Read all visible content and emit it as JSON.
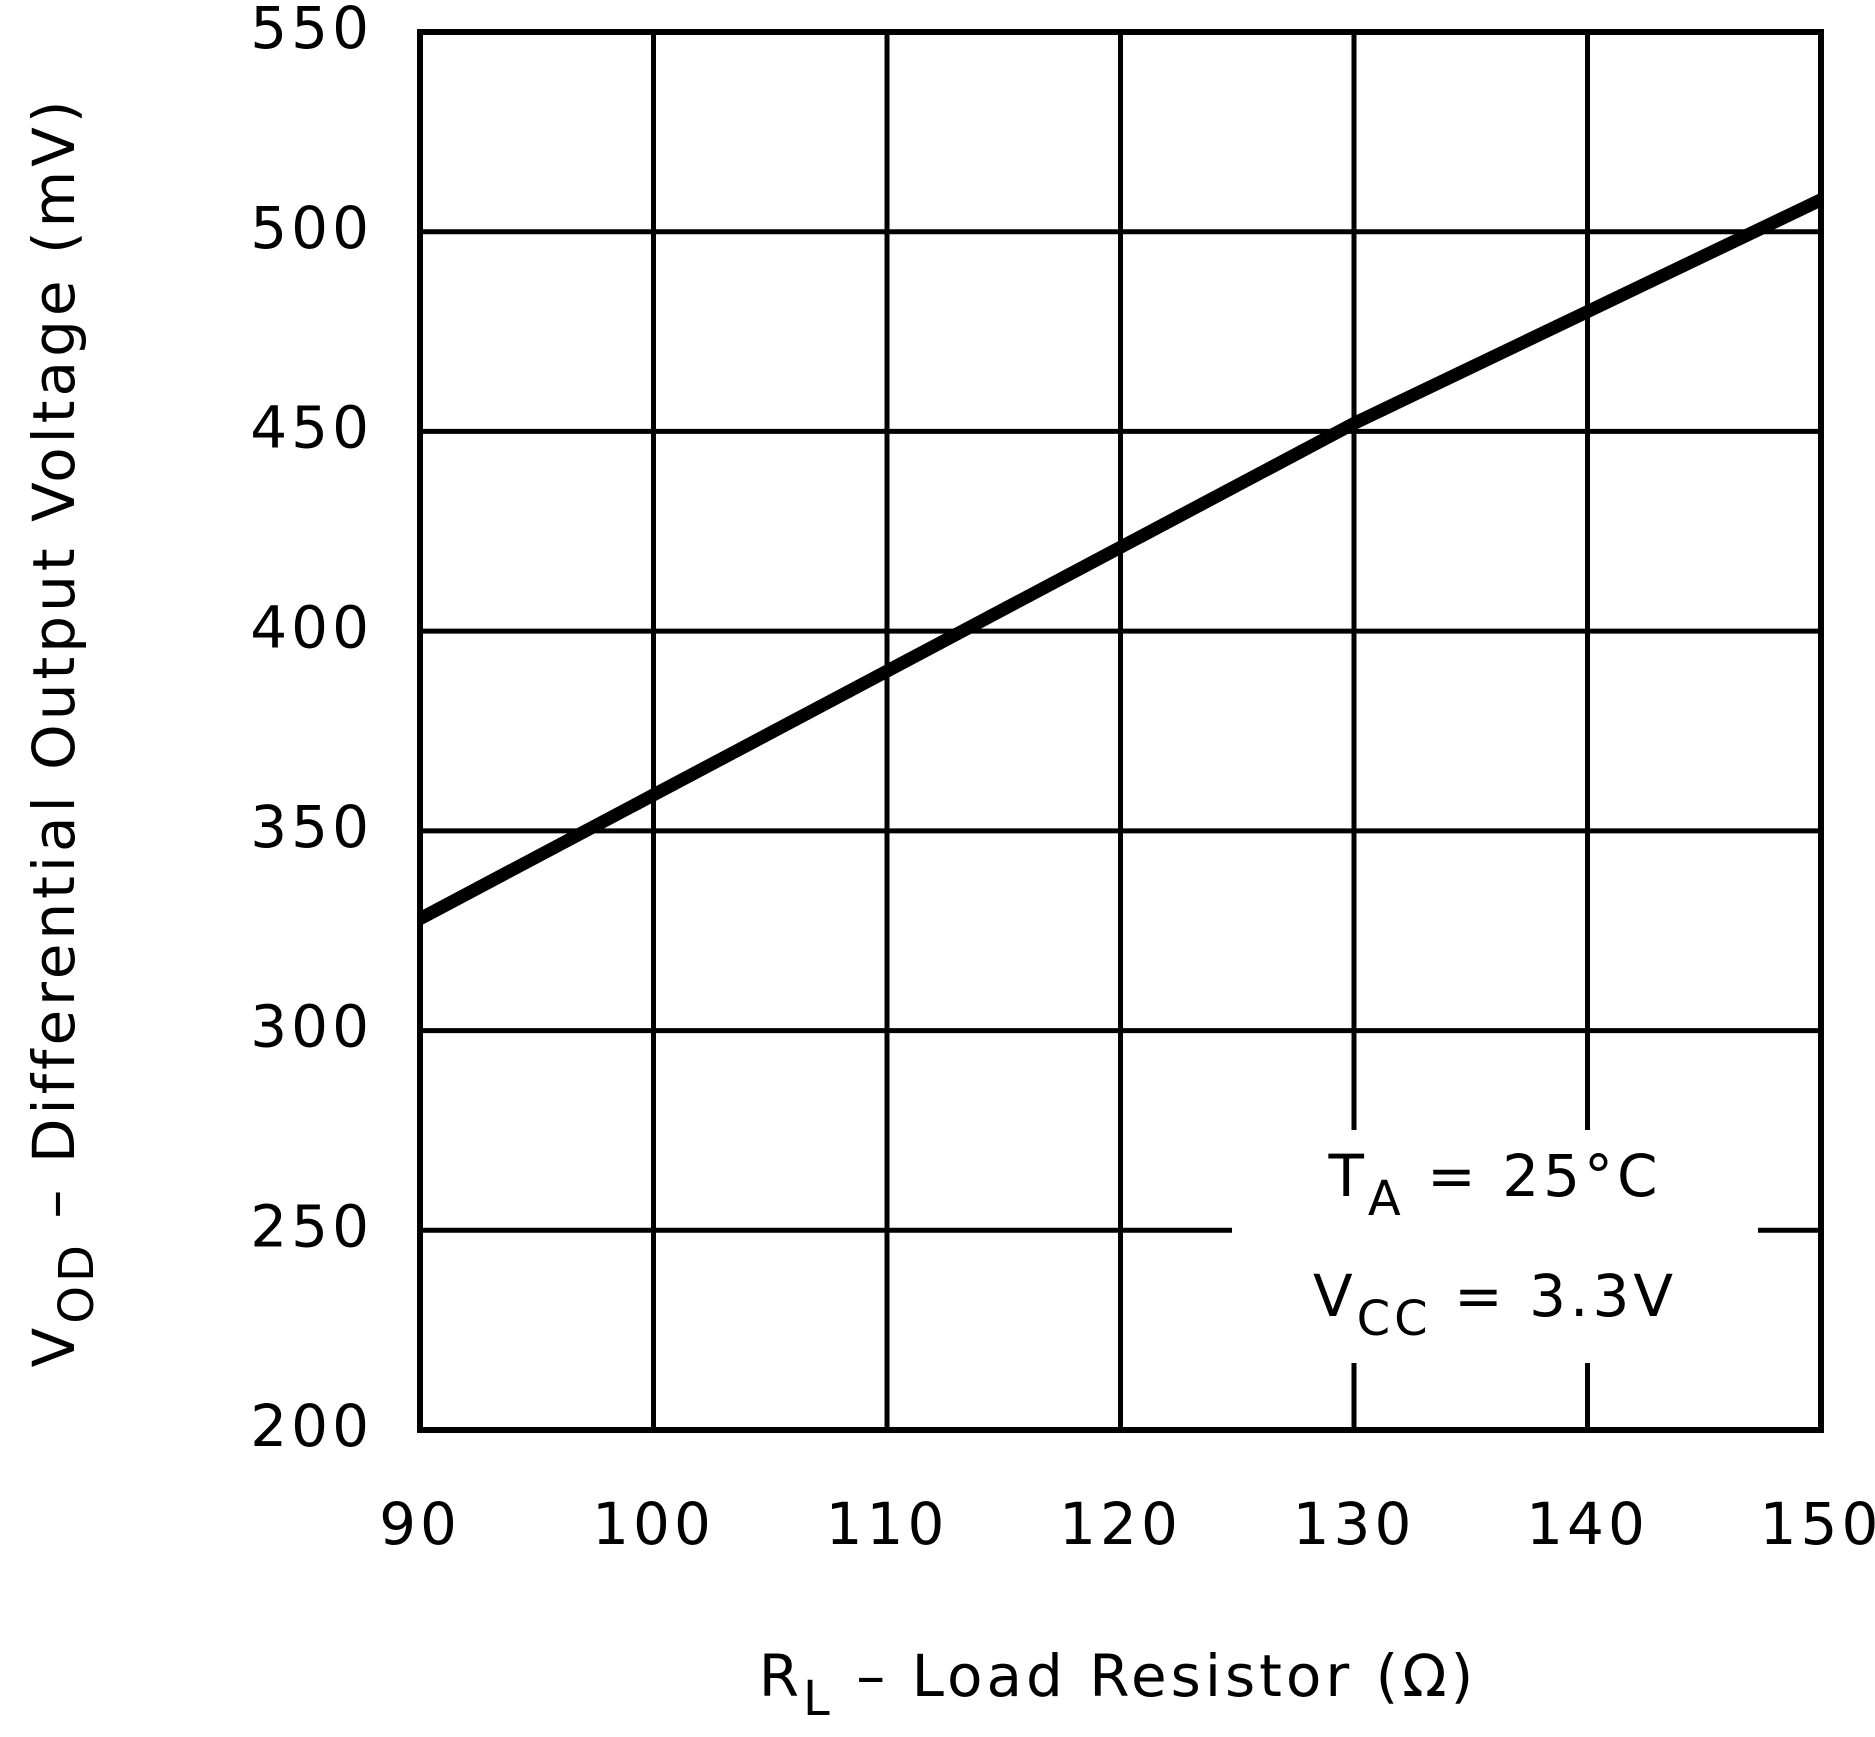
{
  "chart_data": {
    "type": "line",
    "xlabel": {
      "text": "R",
      "subscript": "L",
      "rest": " – Load Resistor (Ω)"
    },
    "ylabel": {
      "text": "V",
      "subscript": "OD",
      "rest": " – Differential Output Voltage (mV)"
    },
    "annotations": [
      {
        "text": "T",
        "subscript": "A",
        "rest": " = 25°C"
      },
      {
        "text": "V",
        "subscript": "CC",
        "rest": " = 3.3V"
      }
    ],
    "x": [
      90,
      100,
      110,
      120,
      130,
      140,
      150
    ],
    "series": [
      {
        "color": "#000000",
        "values": [
          328,
          359,
          390,
          421,
          452,
          480,
          508
        ]
      }
    ],
    "xlim": [
      90,
      150
    ],
    "xticks": [
      90,
      100,
      110,
      120,
      130,
      140,
      150
    ],
    "ylim": [
      200,
      550
    ],
    "yticks": [
      200,
      250,
      300,
      350,
      400,
      450,
      500,
      550
    ],
    "grid": true
  }
}
